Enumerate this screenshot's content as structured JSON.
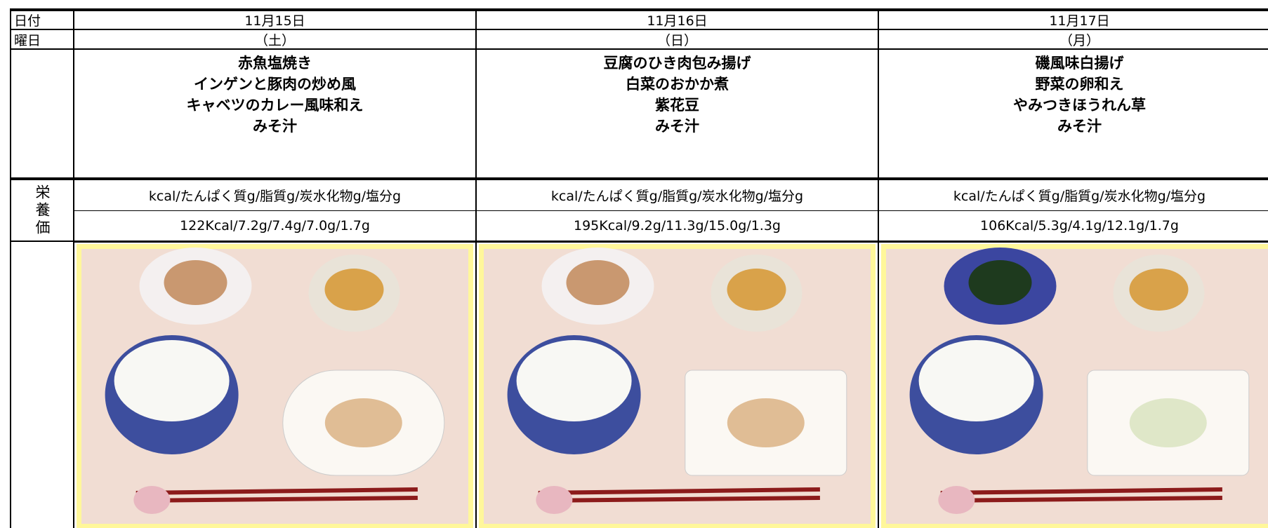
{
  "labels": {
    "date": "日付",
    "weekday": "曜日",
    "nutrition": "栄養価"
  },
  "days": [
    {
      "date": "11月15日",
      "weekday": "（土）",
      "menu": [
        "赤魚塩焼き",
        "インゲンと豚肉の炒め風",
        "キャベツのカレー風味和え",
        "みそ汁"
      ],
      "nutrition_header": "kcal/たんぱく質g/脂質g/炭水化物g/塩分g",
      "nutrition": "122Kcal/7.2g/7.4g/7.0g/1.7g"
    },
    {
      "date": "11月16日",
      "weekday": "（日）",
      "menu": [
        "豆腐のひき肉包み揚げ",
        "白菜のおかか煮",
        "紫花豆",
        "みそ汁"
      ],
      "nutrition_header": "kcal/たんぱく質g/脂質g/炭水化物g/塩分g",
      "nutrition": "195Kcal/9.2g/11.3g/15.0g/1.3g"
    },
    {
      "date": "11月17日",
      "weekday": "（月）",
      "menu": [
        "磯風味白揚げ",
        "野菜の卵和え",
        "やみつきほうれん草",
        "みそ汁"
      ],
      "nutrition_header": "kcal/たんぱく質g/脂質g/炭水化物g/塩分g",
      "nutrition": "106Kcal/5.3g/4.1g/12.1g/1.7g"
    }
  ]
}
